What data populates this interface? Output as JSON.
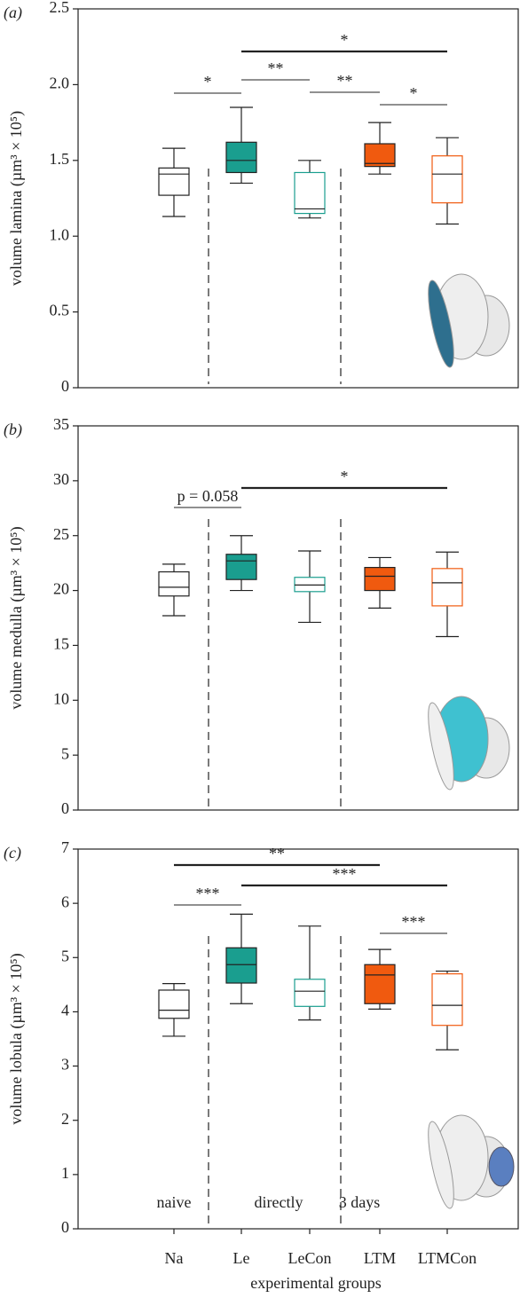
{
  "chart_data": [
    {
      "type": "box",
      "panel_label": "(a)",
      "y_label": "volume lamina  (µm³ × 10⁵)",
      "ylim": [
        0,
        2.5
      ],
      "yticks": [
        0,
        0.5,
        {
          "value": 1,
          "label": "1.0"
        },
        1.5,
        {
          "value": 2,
          "label": "2.0"
        },
        2.5
      ],
      "boxes": [
        {
          "low": 1.13,
          "q1": 1.27,
          "median": 1.41,
          "q3": 1.45,
          "high": 1.58,
          "fill": "#ffffff",
          "edge": "#222222"
        },
        {
          "low": 1.35,
          "q1": 1.42,
          "median": 1.5,
          "q3": 1.62,
          "high": 1.85,
          "fill": "#1a9e8f",
          "edge": "#222222"
        },
        {
          "low": 1.12,
          "q1": 1.15,
          "median": 1.18,
          "q3": 1.42,
          "high": 1.5,
          "fill": "#ffffff",
          "edge": "#1a9e8f"
        },
        {
          "low": 1.41,
          "q1": 1.46,
          "median": 1.48,
          "q3": 1.61,
          "high": 1.75,
          "fill": "#f05a0f",
          "edge": "#222222"
        },
        {
          "low": 1.08,
          "q1": 1.22,
          "median": 1.41,
          "q3": 1.53,
          "high": 1.65,
          "fill": "#ffffff",
          "edge": "#f05a0f"
        }
      ],
      "annotations": [
        {
          "from": 0,
          "to": 1,
          "label": "*"
        },
        {
          "from": 1,
          "to": 4,
          "label": "*"
        },
        {
          "from": 1,
          "to": 2,
          "label": "**"
        },
        {
          "from": 2,
          "to": 3,
          "label": "**"
        },
        {
          "from": 3,
          "to": 4,
          "label": "*"
        }
      ]
    },
    {
      "type": "box",
      "panel_label": "(b)",
      "y_label": "volume medulla (µm³ × 10⁵)",
      "ylim": [
        0,
        35
      ],
      "yticks": [
        0,
        5,
        10,
        15,
        20,
        25,
        30,
        35
      ],
      "boxes": [
        {
          "low": 17.7,
          "q1": 19.5,
          "median": 20.3,
          "q3": 21.7,
          "high": 22.4,
          "fill": "#ffffff",
          "edge": "#222222"
        },
        {
          "low": 20.0,
          "q1": 21.0,
          "median": 22.7,
          "q3": 23.3,
          "high": 25.0,
          "fill": "#1a9e8f",
          "edge": "#222222"
        },
        {
          "low": 17.1,
          "q1": 19.9,
          "median": 20.5,
          "q3": 21.2,
          "high": 23.6,
          "fill": "#ffffff",
          "edge": "#1a9e8f"
        },
        {
          "low": 18.4,
          "q1": 20.0,
          "median": 21.3,
          "q3": 22.1,
          "high": 23.0,
          "fill": "#f05a0f",
          "edge": "#222222"
        },
        {
          "low": 15.8,
          "q1": 18.6,
          "median": 20.7,
          "q3": 22.0,
          "high": 23.5,
          "fill": "#ffffff",
          "edge": "#f05a0f"
        }
      ],
      "annotations": [
        {
          "from": 0,
          "to": 1,
          "label": "p = 0.058"
        },
        {
          "from": 1,
          "to": 4,
          "label": "*"
        }
      ]
    },
    {
      "type": "box",
      "panel_label": "(c)",
      "y_label": "volume lobula (µm³ × 10⁵)",
      "x_label": "experimental groups",
      "categories": [
        "Na",
        "Le",
        "LeCon",
        "LTM",
        "LTMCon"
      ],
      "group_labels": [
        "naive",
        "directly",
        "3 days"
      ],
      "ylim": [
        0,
        7
      ],
      "yticks": [
        0,
        1,
        2,
        3,
        4,
        5,
        6,
        7
      ],
      "boxes": [
        {
          "low": 3.55,
          "q1": 3.88,
          "median": 4.03,
          "q3": 4.4,
          "high": 4.52,
          "fill": "#ffffff",
          "edge": "#222222"
        },
        {
          "low": 4.15,
          "q1": 4.53,
          "median": 4.87,
          "q3": 5.18,
          "high": 5.8,
          "fill": "#1a9e8f",
          "edge": "#222222"
        },
        {
          "low": 3.85,
          "q1": 4.1,
          "median": 4.38,
          "q3": 4.6,
          "high": 5.58,
          "fill": "#ffffff",
          "edge": "#1a9e8f"
        },
        {
          "low": 4.05,
          "q1": 4.15,
          "median": 4.68,
          "q3": 4.87,
          "high": 5.15,
          "fill": "#f05a0f",
          "edge": "#222222"
        },
        {
          "low": 3.3,
          "q1": 3.75,
          "median": 4.12,
          "q3": 4.7,
          "high": 4.75,
          "fill": "#ffffff",
          "edge": "#f05a0f"
        }
      ],
      "annotations": [
        {
          "from": 0,
          "to": 3,
          "label": "**"
        },
        {
          "from": 0,
          "to": 1,
          "label": "***"
        },
        {
          "from": 1,
          "to": 4,
          "label": "***"
        },
        {
          "from": 3,
          "to": 4,
          "label": "***"
        }
      ]
    }
  ]
}
